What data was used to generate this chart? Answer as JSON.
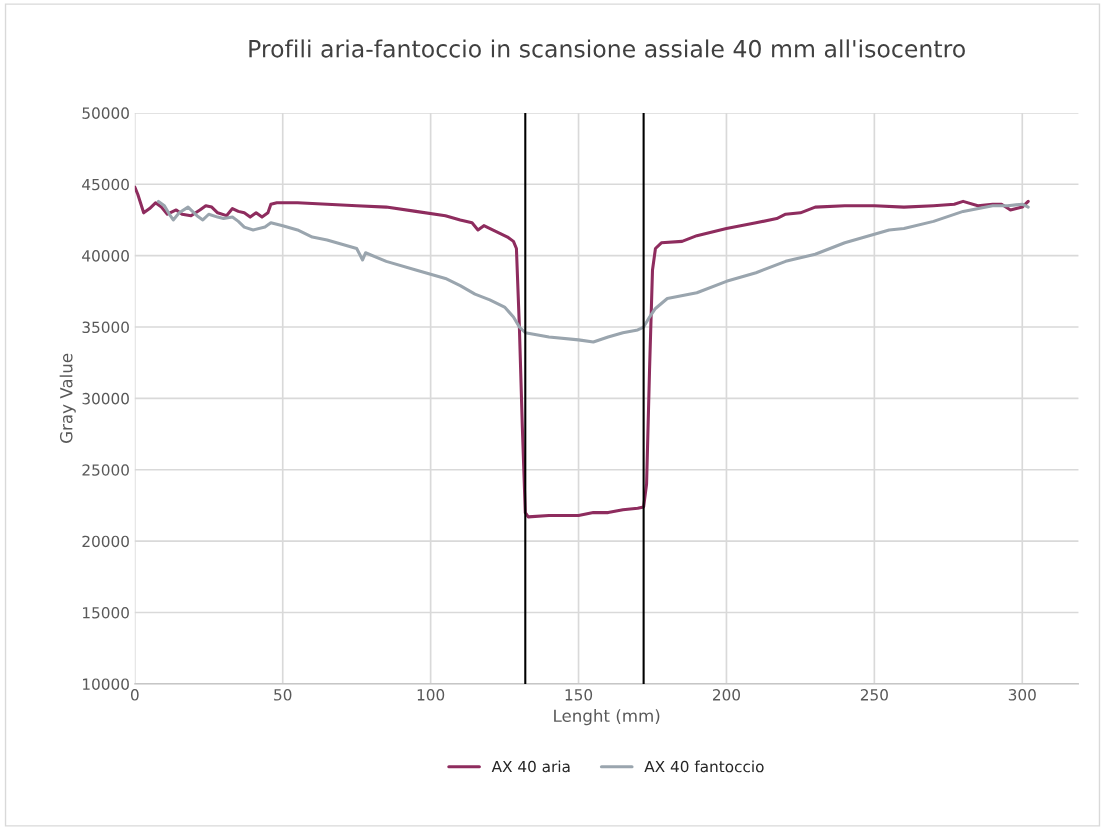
{
  "chart_data": {
    "type": "line",
    "title": "Profili aria-fantoccio in scansione assiale 40 mm all'isocentro",
    "xlabel": "Lenght (mm)",
    "ylabel": "Gray Value",
    "xlim": [
      0,
      319
    ],
    "xticks": [
      0,
      50,
      100,
      150,
      200,
      250,
      300
    ],
    "ylim": [
      10000,
      50000
    ],
    "yticks": [
      10000,
      15000,
      20000,
      25000,
      30000,
      35000,
      40000,
      45000,
      50000
    ],
    "grid": true,
    "legend": "bottom",
    "marker": "none",
    "line_style": "solid",
    "ref_lines": [
      {
        "axis": "x",
        "value": 132,
        "color": "#000000"
      },
      {
        "axis": "x",
        "value": 172,
        "color": "#000000"
      }
    ],
    "series": [
      {
        "name": "AX 40 aria",
        "color": "#8e2c5e",
        "x": [
          0,
          1,
          3,
          5,
          7,
          9,
          11,
          14,
          16,
          19,
          22,
          24,
          26,
          28,
          31,
          33,
          35,
          37,
          39,
          41,
          43,
          45,
          46,
          48,
          55,
          65,
          75,
          85,
          95,
          105,
          110,
          114,
          116,
          118,
          122,
          126,
          128,
          129,
          130,
          131,
          132,
          133,
          140,
          150,
          155,
          160,
          165,
          170,
          172,
          173,
          174,
          175,
          176,
          178,
          185,
          190,
          200,
          210,
          217,
          220,
          225,
          230,
          240,
          250,
          260,
          270,
          277,
          280,
          285,
          290,
          293,
          296,
          298,
          300,
          302
        ],
        "values": [
          44800,
          44300,
          43000,
          43300,
          43700,
          43400,
          42900,
          43200,
          42900,
          42800,
          43200,
          43500,
          43400,
          43000,
          42800,
          43300,
          43100,
          43000,
          42700,
          43000,
          42700,
          43000,
          43600,
          43700,
          43700,
          43600,
          43500,
          43400,
          43100,
          42800,
          42500,
          42300,
          41800,
          42100,
          41700,
          41300,
          41000,
          40500,
          35000,
          28000,
          22000,
          21700,
          21800,
          21800,
          22000,
          22000,
          22200,
          22300,
          22400,
          24000,
          32000,
          39000,
          40500,
          40900,
          41000,
          41400,
          41900,
          42300,
          42600,
          42900,
          43000,
          43400,
          43500,
          43500,
          43400,
          43500,
          43600,
          43800,
          43500,
          43600,
          43600,
          43200,
          43300,
          43400,
          43800
        ]
      },
      {
        "name": "AX 40 fantoccio",
        "color": "#9aa5ae",
        "x": [
          8,
          10,
          12,
          13,
          15,
          18,
          21,
          23,
          25,
          28,
          30,
          33,
          35,
          37,
          40,
          44,
          46,
          50,
          55,
          60,
          65,
          70,
          75,
          77,
          78,
          85,
          95,
          105,
          110,
          115,
          120,
          125,
          128,
          130,
          132,
          140,
          150,
          155,
          160,
          165,
          170,
          172,
          174,
          176,
          180,
          190,
          200,
          210,
          220,
          230,
          240,
          250,
          255,
          260,
          270,
          280,
          290,
          295,
          300,
          302
        ],
        "values": [
          43800,
          43500,
          42800,
          42500,
          43000,
          43400,
          42800,
          42500,
          42900,
          42700,
          42600,
          42700,
          42400,
          42000,
          41800,
          42000,
          42300,
          42100,
          41800,
          41300,
          41100,
          40800,
          40500,
          39700,
          40200,
          39600,
          39000,
          38400,
          37900,
          37300,
          36900,
          36400,
          35700,
          35000,
          34600,
          34300,
          34100,
          33950,
          34300,
          34600,
          34800,
          35000,
          35700,
          36300,
          37000,
          37400,
          38200,
          38800,
          39600,
          40100,
          40900,
          41500,
          41800,
          41900,
          42400,
          43100,
          43500,
          43500,
          43600,
          43400
        ]
      }
    ]
  }
}
